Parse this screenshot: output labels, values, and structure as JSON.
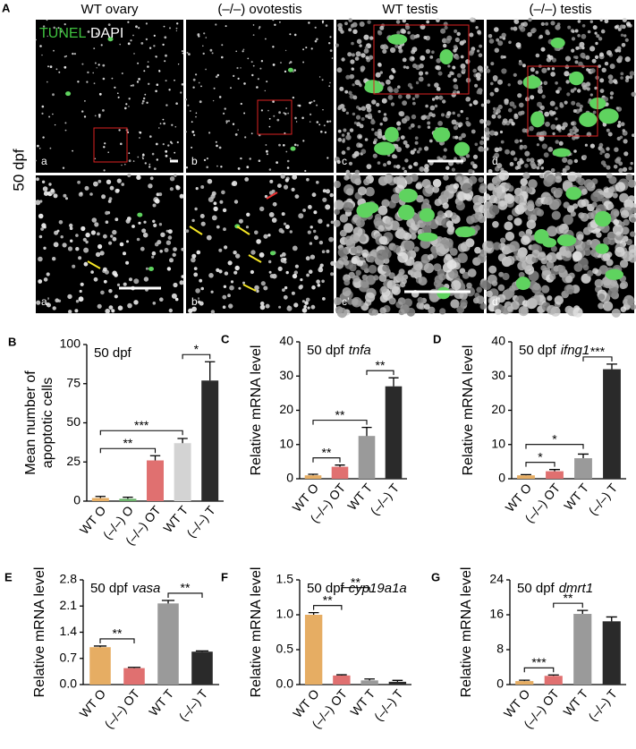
{
  "figure": {
    "panel": "A",
    "headers": [
      "WT ovary",
      "(–/–) ovotestis",
      "WT testis",
      "(–/–) testis"
    ],
    "row_label": "50 dpf",
    "sublabels": [
      "a",
      "b",
      "c",
      "d",
      "a’",
      "b’",
      "c’",
      "d’"
    ],
    "stain_green": "TUNEL",
    "stain_white": "DAPI"
  },
  "chart_data": [
    {
      "type": "bar",
      "panel": "B",
      "title": "50 dpf",
      "ylabel": [
        "Mean number of",
        "apoptotic cells"
      ],
      "categories": [
        "WT O",
        "(–/–) O",
        "(–/–) OT",
        "WT T",
        "(–/–) T"
      ],
      "values": [
        2,
        1.5,
        26,
        37,
        77
      ],
      "errors": [
        1,
        1,
        3,
        3,
        12
      ],
      "colors": [
        "#e6ad63",
        "#6bb36b",
        "#e07070",
        "#d3d3d3",
        "#2a2a2a"
      ],
      "ylim": [
        0,
        100
      ],
      "yticks": [
        0,
        25,
        50,
        75,
        100
      ],
      "brackets": [
        {
          "from": 0,
          "to": 2,
          "label": "**"
        },
        {
          "from": 0,
          "to": 3,
          "label": "***"
        },
        {
          "from": 3,
          "to": 4,
          "label": "*"
        }
      ]
    },
    {
      "type": "bar",
      "panel": "C",
      "title": "50 dpf",
      "gene": "tnfa",
      "ylabel": "Relative mRNA level",
      "categories": [
        "WT O",
        "(–/–) OT",
        "WT T",
        "(–/–) T"
      ],
      "values": [
        1,
        3.5,
        12.5,
        27
      ],
      "errors": [
        0.3,
        0.5,
        2.5,
        2.5
      ],
      "colors": [
        "#e6ad63",
        "#e07070",
        "#9a9a9a",
        "#2a2a2a"
      ],
      "ylim": [
        0,
        40
      ],
      "yticks": [
        0,
        10,
        20,
        30,
        40
      ],
      "brackets": [
        {
          "from": 0,
          "to": 1,
          "label": "**"
        },
        {
          "from": 0,
          "to": 2,
          "label": "**"
        },
        {
          "from": 2,
          "to": 3,
          "label": "**"
        }
      ]
    },
    {
      "type": "bar",
      "panel": "D",
      "title": "50 dpf",
      "gene": "ifng1",
      "ylabel": "Relative mRNA level",
      "categories": [
        "WT O",
        "(–/–) OT",
        "WT T",
        "(–/–) T"
      ],
      "values": [
        1,
        2.2,
        6,
        32
      ],
      "errors": [
        0.2,
        0.5,
        1.2,
        1.5
      ],
      "colors": [
        "#e6ad63",
        "#e07070",
        "#9a9a9a",
        "#2a2a2a"
      ],
      "ylim": [
        0,
        40
      ],
      "yticks": [
        0,
        10,
        20,
        30,
        40
      ],
      "brackets": [
        {
          "from": 0,
          "to": 1,
          "label": "*"
        },
        {
          "from": 0,
          "to": 2,
          "label": "*"
        },
        {
          "from": 2,
          "to": 3,
          "label": "***"
        }
      ]
    },
    {
      "type": "bar",
      "panel": "E",
      "title": "50 dpf",
      "gene": "vasa",
      "ylabel": "Relative mRNA level",
      "categories": [
        "WT O",
        "(–/–) OT",
        "WT T",
        "(–/–) T"
      ],
      "values": [
        1.0,
        0.44,
        2.17,
        0.88
      ],
      "errors": [
        0.03,
        0.02,
        0.08,
        0.02
      ],
      "colors": [
        "#e6ad63",
        "#e07070",
        "#9a9a9a",
        "#2a2a2a"
      ],
      "ylim": [
        0,
        2.8
      ],
      "yticks": [
        {
          "value": 0,
          "label": "0.0"
        },
        0.7,
        1.4,
        2.1,
        2.8
      ],
      "brackets": [
        {
          "from": 0,
          "to": 1,
          "label": "**"
        },
        {
          "from": 2,
          "to": 3,
          "label": "**"
        }
      ]
    },
    {
      "type": "bar",
      "panel": "F",
      "title": "50 dpf",
      "gene": "cyp19a1a",
      "ylabel": "Relative mRNA level",
      "categories": [
        "WT O",
        "(–/–) OT",
        "WT T",
        "(–/–) T"
      ],
      "values": [
        1.0,
        0.13,
        0.06,
        0.04
      ],
      "errors": [
        0.03,
        0.01,
        0.02,
        0.02
      ],
      "colors": [
        "#e6ad63",
        "#e07070",
        "#9a9a9a",
        "#2a2a2a"
      ],
      "ylim": [
        0,
        1.5
      ],
      "yticks": [
        {
          "value": 0,
          "label": "0.0"
        },
        0.5,
        {
          "value": 1,
          "label": "1.0"
        },
        1.5
      ],
      "brackets": [
        {
          "from": 0,
          "to": 1,
          "label": "**"
        },
        {
          "from": 1,
          "to": 2,
          "label": "**"
        }
      ]
    },
    {
      "type": "bar",
      "panel": "G",
      "title": "50 dpf",
      "gene": "dmrt1",
      "ylabel": "Relative mRNA level",
      "categories": [
        "WT O",
        "(–/–) OT",
        "WT T",
        "(–/–) T"
      ],
      "values": [
        0.8,
        2.0,
        16.2,
        14.5
      ],
      "errors": [
        0.2,
        0.2,
        0.8,
        1.0
      ],
      "colors": [
        "#e6ad63",
        "#e07070",
        "#9a9a9a",
        "#2a2a2a"
      ],
      "ylim": [
        0,
        24
      ],
      "yticks": [
        0,
        8,
        16,
        24
      ],
      "brackets": [
        {
          "from": 0,
          "to": 1,
          "label": "***"
        },
        {
          "from": 1,
          "to": 2,
          "label": "**"
        }
      ]
    }
  ]
}
